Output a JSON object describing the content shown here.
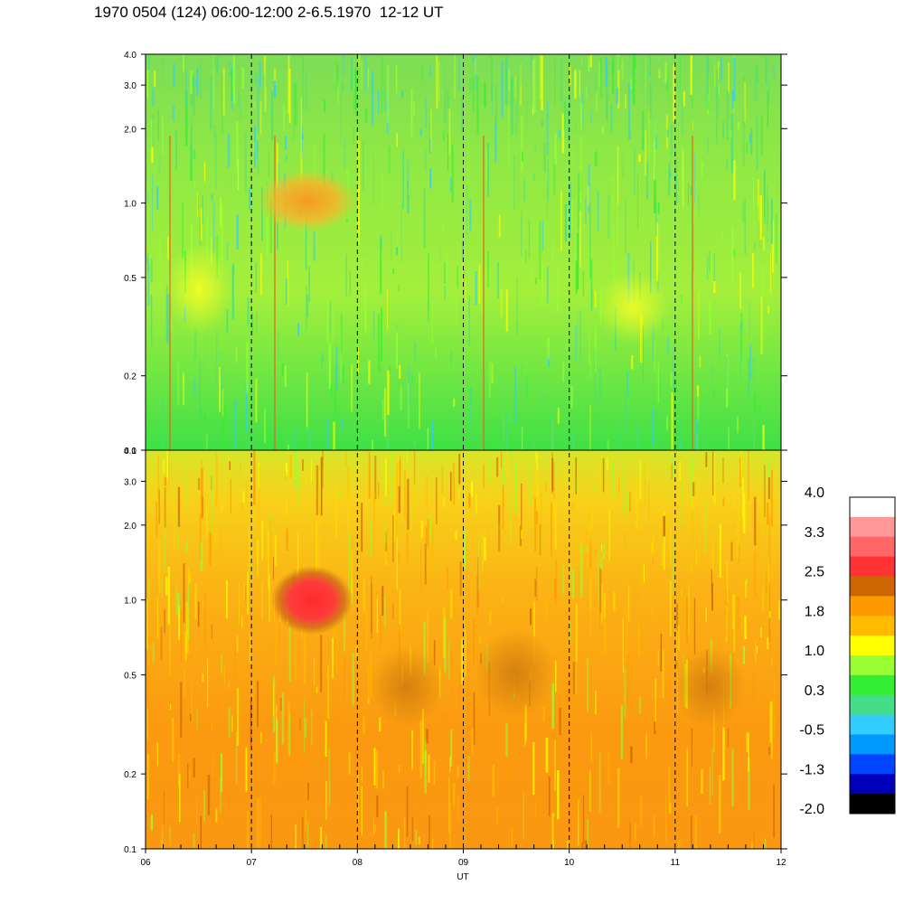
{
  "title": "1970 0504 (124) 06:00-12:00 2-6.5.1970  12-12 UT",
  "chart_data": [
    {
      "type": "heatmap",
      "panel": "upper",
      "x_range": [
        "06",
        "12"
      ],
      "y_scale": "log",
      "ylim": [
        0.1,
        4.0
      ],
      "y_ticks": [
        "0.1",
        "0.2",
        "0.5",
        "1.0",
        "2.0",
        "3.0",
        "4.0"
      ],
      "dominant_level": "0.3 to 1.0 (green/yellow)",
      "feature": "enhancement ~1.8 near 1.0 at 07:15-07:55 UT",
      "vertical_dashed_lines_at": [
        "07",
        "08",
        "09",
        "10",
        "11"
      ]
    },
    {
      "type": "heatmap",
      "panel": "lower",
      "x_range": [
        "06",
        "12"
      ],
      "y_scale": "log",
      "ylim": [
        0.1,
        4.0
      ],
      "y_ticks": [
        "0.1",
        "0.2",
        "0.5",
        "1.0",
        "2.0",
        "3.0",
        "4.0"
      ],
      "dominant_level": "1.0 to 2.2 (yellow/orange)",
      "feature": "peak ~2.5 near 1.0 at 07:20-07:50 UT",
      "vertical_dashed_lines_at": [
        "07",
        "08",
        "09",
        "10",
        "11"
      ]
    }
  ],
  "x_axis": {
    "label": "UT",
    "ticks": [
      "06",
      "07",
      "08",
      "09",
      "10",
      "11",
      "12"
    ]
  },
  "colorbar": {
    "labels": [
      "4.0",
      "3.3",
      "2.5",
      "1.8",
      "1.0",
      "0.3",
      "-0.5",
      "-1.3",
      "-2.0"
    ],
    "colors": [
      "#ffffff",
      "#ff9999",
      "#ff6666",
      "#ff3333",
      "#cc6600",
      "#ff9900",
      "#ffbb00",
      "#ffff00",
      "#99ff33",
      "#33ee33",
      "#44dd88",
      "#33ccff",
      "#0099ff",
      "#0044ff",
      "#0000bb",
      "#000000"
    ]
  }
}
